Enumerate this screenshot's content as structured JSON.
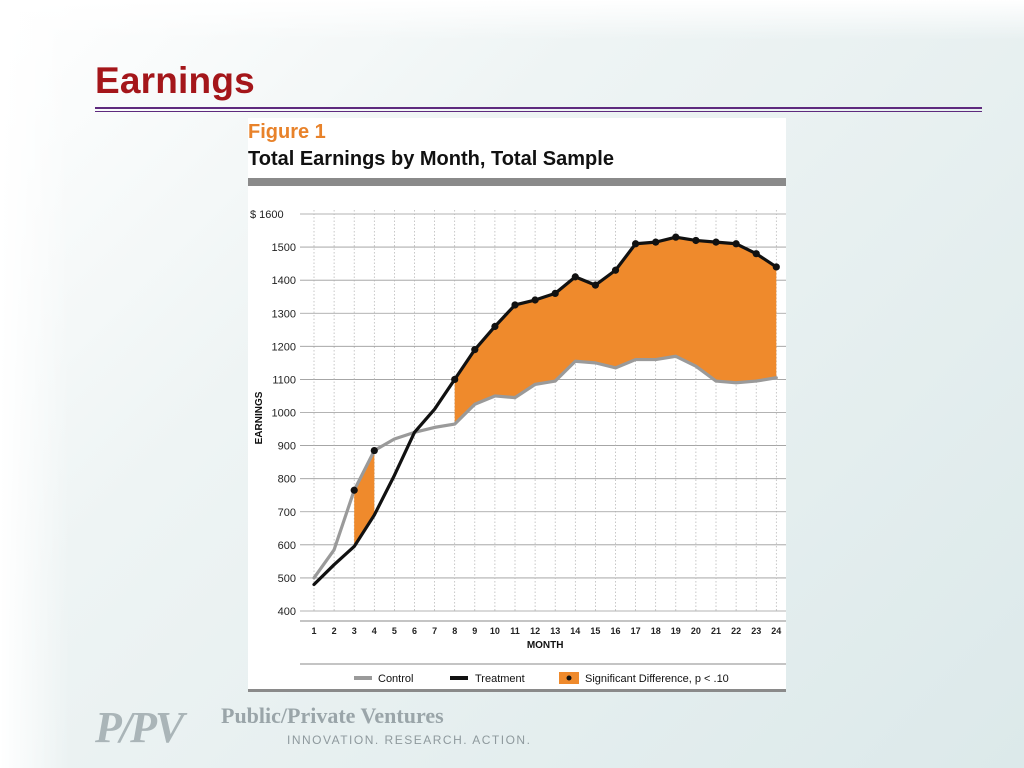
{
  "slide": {
    "title": "Earnings"
  },
  "figure": {
    "label": "Figure 1",
    "label_color": "#e8822a",
    "title": "Total Earnings by Month, Total Sample"
  },
  "chart_data": {
    "type": "line",
    "title": "Total Earnings by Month, Total Sample",
    "xlabel": "MONTH",
    "ylabel": "EARNINGS",
    "x": [
      1,
      2,
      3,
      4,
      5,
      6,
      7,
      8,
      9,
      10,
      11,
      12,
      13,
      14,
      15,
      16,
      17,
      18,
      19,
      20,
      21,
      22,
      23,
      24
    ],
    "ylim": [
      400,
      1600
    ],
    "y_ticks": [
      "$ 1600",
      "1500",
      "1400",
      "1300",
      "1200",
      "1100",
      "1000",
      "900",
      "800",
      "700",
      "600",
      "500",
      "400"
    ],
    "y_tick_values": [
      1600,
      1500,
      1400,
      1300,
      1200,
      1100,
      1000,
      900,
      800,
      700,
      600,
      500,
      400
    ],
    "series": [
      {
        "name": "Control",
        "color": "#9a9a9a",
        "values": [
          500,
          585,
          765,
          885,
          920,
          940,
          955,
          965,
          1025,
          1050,
          1045,
          1085,
          1095,
          1155,
          1150,
          1135,
          1160,
          1160,
          1170,
          1140,
          1095,
          1090,
          1095,
          1105
        ]
      },
      {
        "name": "Treatment",
        "color": "#111111",
        "values": [
          480,
          540,
          595,
          690,
          810,
          940,
          1010,
          1100,
          1190,
          1260,
          1325,
          1340,
          1360,
          1410,
          1385,
          1430,
          1510,
          1515,
          1530,
          1520,
          1515,
          1510,
          1480,
          1440
        ]
      }
    ],
    "significant_months": [
      3,
      4,
      8,
      9,
      10,
      11,
      12,
      13,
      14,
      15,
      16,
      17,
      18,
      19,
      20,
      21,
      22,
      23,
      24
    ],
    "significant_color": "#ef8a2c",
    "legend": {
      "placement": "bottom",
      "items": [
        "Control",
        "Treatment",
        "Significant Difference, p < .10"
      ]
    },
    "grid": true
  },
  "footer": {
    "logo": "P/PV",
    "org": "Public/Private Ventures",
    "tagline": "INNOVATION. RESEARCH. ACTION."
  }
}
